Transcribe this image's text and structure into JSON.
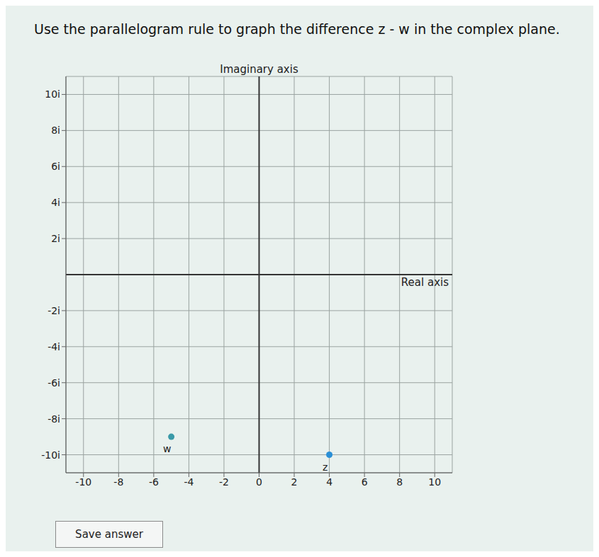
{
  "chart_data": {
    "type": "scatter",
    "title": "Use the parallelogram rule to graph the difference z - w in the complex plane.",
    "x_label": "Real axis",
    "y_label": "Imaginary axis",
    "series": [
      {
        "name": "w",
        "color": "#3a9aa8",
        "x": [
          -5
        ],
        "values": [
          -9
        ],
        "marker": "circle"
      },
      {
        "name": "z",
        "color": "#2a8fd6",
        "x": [
          4
        ],
        "values": [
          -10
        ],
        "marker": "circle"
      }
    ],
    "xlim": [
      -11,
      11
    ],
    "ylim": [
      -11,
      11
    ],
    "xticks": [
      -10,
      -8,
      -6,
      -4,
      -2,
      0,
      2,
      4,
      6,
      8,
      10
    ],
    "yticks": [
      {
        "value": -10,
        "label": "-10i"
      },
      {
        "value": -8,
        "label": "-8i"
      },
      {
        "value": -6,
        "label": "-6i"
      },
      {
        "value": -4,
        "label": "-4i"
      },
      {
        "value": -2,
        "label": "-2i"
      },
      {
        "value": 2,
        "label": "2i"
      },
      {
        "value": 4,
        "label": "4i"
      },
      {
        "value": 6,
        "label": "6i"
      },
      {
        "value": 8,
        "label": "8i"
      },
      {
        "value": 10,
        "label": "10i"
      }
    ],
    "grid": true
  },
  "button_label": "Save answer"
}
